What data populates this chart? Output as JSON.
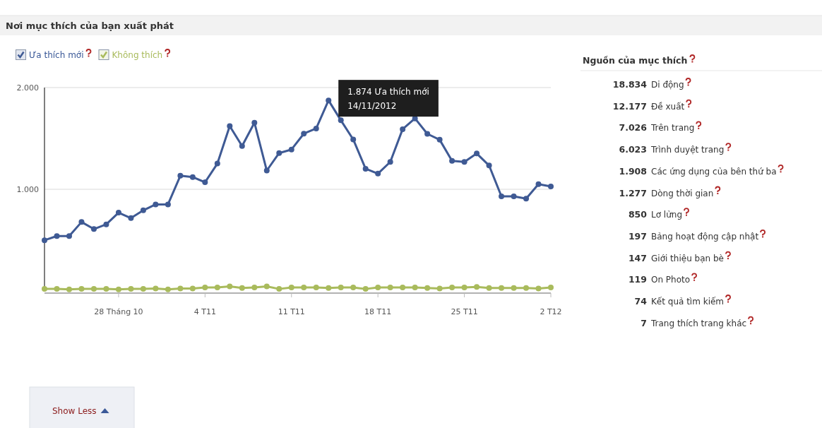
{
  "chart_data": [
    {
      "type": "line",
      "title": "Nơi mục thích của bạn xuất phát",
      "x": [
        "2012-10-22",
        "2012-10-23",
        "2012-10-24",
        "2012-10-25",
        "2012-10-26",
        "2012-10-27",
        "2012-10-28",
        "2012-10-29",
        "2012-10-30",
        "2012-10-31",
        "2012-11-01",
        "2012-11-02",
        "2012-11-03",
        "2012-11-04",
        "2012-11-05",
        "2012-11-06",
        "2012-11-07",
        "2012-11-08",
        "2012-11-09",
        "2012-11-10",
        "2012-11-11",
        "2012-11-12",
        "2012-11-13",
        "2012-11-14",
        "2012-11-15",
        "2012-11-16",
        "2012-11-17",
        "2012-11-18",
        "2012-11-19",
        "2012-11-20",
        "2012-11-21",
        "2012-11-22",
        "2012-11-23",
        "2012-11-24",
        "2012-11-25",
        "2012-11-26",
        "2012-11-27",
        "2012-11-28",
        "2012-11-29",
        "2012-11-30",
        "2012-12-01",
        "2012-12-02"
      ],
      "series": [
        {
          "name": "Ưa thích mới",
          "color": "#3f5a94",
          "values": [
            499,
            540,
            540,
            678,
            609,
            655,
            770,
            717,
            793,
            851,
            851,
            1133,
            1120,
            1069,
            1253,
            1621,
            1425,
            1655,
            1184,
            1356,
            1391,
            1547,
            1598,
            1874,
            1678,
            1490,
            1202,
            1154,
            1269,
            1591,
            1697,
            1545,
            1487,
            1280,
            1269,
            1352,
            1234,
            931,
            931,
            908,
            1051,
            1028
          ]
        },
        {
          "name": "Không thích",
          "color": "#a9bb5c",
          "values": [
            20,
            20,
            15,
            20,
            20,
            20,
            15,
            20,
            20,
            25,
            15,
            25,
            25,
            35,
            35,
            45,
            30,
            35,
            45,
            20,
            35,
            35,
            35,
            30,
            35,
            35,
            20,
            35,
            35,
            35,
            35,
            30,
            25,
            35,
            35,
            40,
            30,
            30,
            30,
            30,
            25,
            35
          ]
        }
      ],
      "xlim": [
        "2012-10-22",
        "2012-12-02"
      ],
      "xticks": [
        {
          "value": "2012-10-28",
          "label": "28 Tháng 10"
        },
        {
          "value": "2012-11-04",
          "label": "4 T11"
        },
        {
          "value": "2012-11-11",
          "label": "11 T11"
        },
        {
          "value": "2012-11-18",
          "label": "18 T11"
        },
        {
          "value": "2012-11-25",
          "label": "25 T11"
        },
        {
          "value": "2012-12-02",
          "label": "2 T12"
        }
      ],
      "ylim": [
        0,
        2000
      ],
      "yticks": [
        {
          "value": 1000,
          "label": "1.000"
        },
        {
          "value": 2000,
          "label": "2.000"
        }
      ],
      "grid": "y",
      "legend": "top left",
      "marker": "circle",
      "line_style": "solid",
      "annotations": [
        {
          "text": "1.874 Ưa thích mới\n14/11/2012",
          "x": "2012-11-14",
          "y": 1874
        },
        "Show Less"
      ]
    },
    {
      "type": "other",
      "title": "Nguồn của mục thích",
      "categories": [
        "Di động",
        "Đề xuất",
        "Trên trang",
        "Trình duyệt trang",
        "Các ứng dụng của bên thứ ba",
        "Dòng thời gian",
        "Lơ lửng",
        "Bảng hoạt động cập nhật",
        "Giới thiệu bạn bè",
        "On Photo",
        "Kết quả tìm kiếm",
        "Trang thích trang khác"
      ],
      "value_labels": [
        "18.834",
        "12.177",
        "7.026",
        "6.023",
        "1.908",
        "1.277",
        "850",
        "197",
        "147",
        "119",
        "74",
        "7"
      ]
    }
  ]
}
